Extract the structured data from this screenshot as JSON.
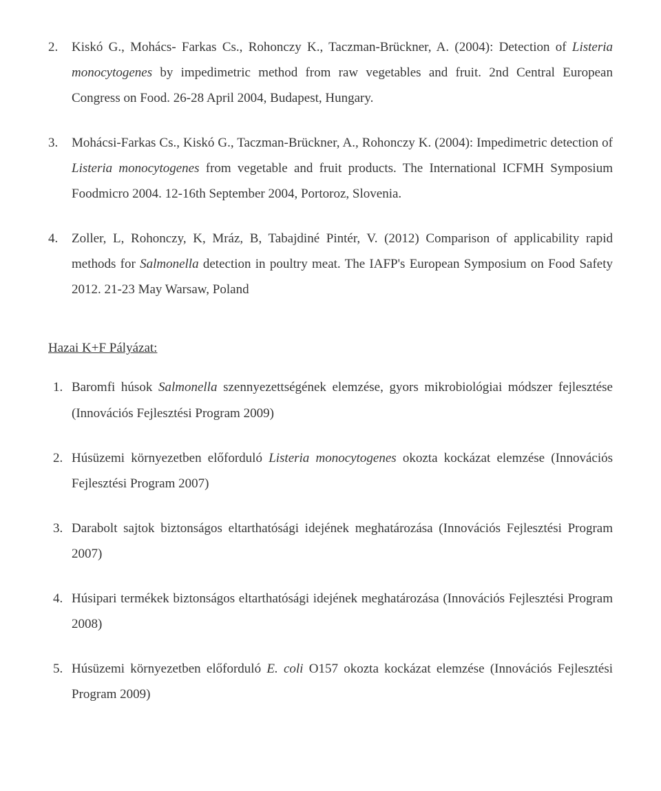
{
  "publications": [
    {
      "num": "2.",
      "p1": "Kiskó G., Mohács- Farkas Cs., Rohonczy K., Taczman-Brückner, A. (2004): Detection of ",
      "it1": "Listeria monocytogenes",
      "p2": " by impedimetric method from raw vegetables and fruit. 2nd Central European Congress on Food. 26-28 April 2004, Budapest, Hungary."
    },
    {
      "num": "3.",
      "p1": "Mohácsi-Farkas Cs., Kiskó G., Taczman-Brückner, A., Rohonczy K. (2004): Impedimetric detection of ",
      "it1": "Listeria monocytogenes",
      "p2": " from vegetable and fruit products. The International ICFMH Symposium Foodmicro 2004. 12-16th September 2004, Portoroz, Slovenia."
    },
    {
      "num": "4.",
      "p1": "Zoller, L, Rohonczy, K, Mráz, B, Tabajdiné Pintér, V. (2012) Comparison of applicability rapid methods for ",
      "it1": "Salmonella",
      "p2": " detection in poultry meat. The IAFP's European Symposium on Food Safety 2012. 21-23 May Warsaw, Poland"
    }
  ],
  "section_heading": "Hazai K+F Pályázat:",
  "projects": [
    {
      "p1": "Baromfi húsok ",
      "it1": "Salmonella",
      "p2": " szennyezettségének elemzése, gyors mikrobiológiai módszer fejlesztése (Innovációs Fejlesztési Program 2009)"
    },
    {
      "p1": "Húsüzemi környezetben előforduló ",
      "it1": "Listeria monocytogenes",
      "p2": " okozta kockázat elemzése (Innovációs Fejlesztési Program 2007)"
    },
    {
      "p1": "Darabolt sajtok biztonságos eltarthatósági idejének meghatározása (Innovációs Fejlesztési Program 2007)",
      "it1": "",
      "p2": ""
    },
    {
      "p1": "Húsipari termékek biztonságos eltarthatósági idejének meghatározása (Innovációs Fejlesztési Program 2008)",
      "it1": "",
      "p2": ""
    },
    {
      "p1": "Húsüzemi környezetben előforduló ",
      "it1": "E. coli",
      "p2": " O157 okozta kockázat elemzése (Innovációs Fejlesztési Program 2009)"
    }
  ]
}
